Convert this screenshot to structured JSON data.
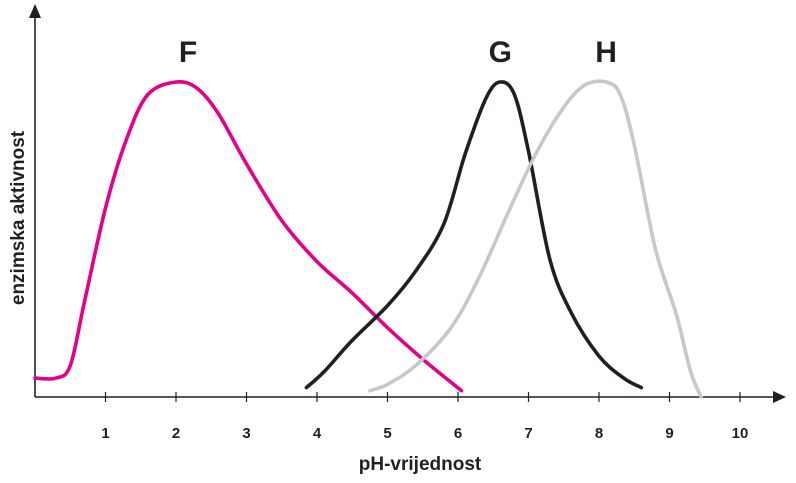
{
  "chart_data": {
    "type": "line",
    "xlabel": "pH-vrijednost",
    "ylabel": "enzimska aktivnost",
    "xlim": [
      0,
      10.6
    ],
    "ylim": [
      0,
      1.05
    ],
    "x_ticks": [
      "1",
      "2",
      "3",
      "4",
      "5",
      "6",
      "7",
      "8",
      "9",
      "10"
    ],
    "y_ticks": [],
    "grid": false,
    "legend": "none",
    "series": [
      {
        "name": "F",
        "color": "#e5008a",
        "points": [
          [
            0.0,
            0.06
          ],
          [
            0.3,
            0.06
          ],
          [
            0.5,
            0.1
          ],
          [
            0.7,
            0.3
          ],
          [
            1.0,
            0.6
          ],
          [
            1.3,
            0.82
          ],
          [
            1.6,
            0.96
          ],
          [
            2.0,
            1.0
          ],
          [
            2.3,
            0.98
          ],
          [
            2.6,
            0.9
          ],
          [
            3.0,
            0.74
          ],
          [
            3.5,
            0.56
          ],
          [
            4.0,
            0.43
          ],
          [
            4.5,
            0.33
          ],
          [
            5.0,
            0.22
          ],
          [
            5.5,
            0.12
          ],
          [
            6.05,
            0.02
          ]
        ]
      },
      {
        "name": "G",
        "color": "#231f20",
        "points": [
          [
            3.85,
            0.03
          ],
          [
            4.1,
            0.08
          ],
          [
            4.5,
            0.18
          ],
          [
            5.0,
            0.29
          ],
          [
            5.4,
            0.4
          ],
          [
            5.8,
            0.55
          ],
          [
            6.1,
            0.77
          ],
          [
            6.4,
            0.95
          ],
          [
            6.6,
            1.0
          ],
          [
            6.8,
            0.96
          ],
          [
            7.0,
            0.78
          ],
          [
            7.3,
            0.44
          ],
          [
            7.6,
            0.27
          ],
          [
            8.0,
            0.13
          ],
          [
            8.35,
            0.06
          ],
          [
            8.6,
            0.03
          ]
        ]
      },
      {
        "name": "H",
        "color": "#c8c8c8",
        "points": [
          [
            4.75,
            0.02
          ],
          [
            5.0,
            0.04
          ],
          [
            5.4,
            0.1
          ],
          [
            5.9,
            0.22
          ],
          [
            6.3,
            0.38
          ],
          [
            6.7,
            0.58
          ],
          [
            7.1,
            0.77
          ],
          [
            7.5,
            0.92
          ],
          [
            7.8,
            0.99
          ],
          [
            8.1,
            1.0
          ],
          [
            8.3,
            0.96
          ],
          [
            8.5,
            0.8
          ],
          [
            8.8,
            0.47
          ],
          [
            9.1,
            0.26
          ],
          [
            9.3,
            0.08
          ],
          [
            9.45,
            0.0
          ]
        ]
      }
    ]
  }
}
